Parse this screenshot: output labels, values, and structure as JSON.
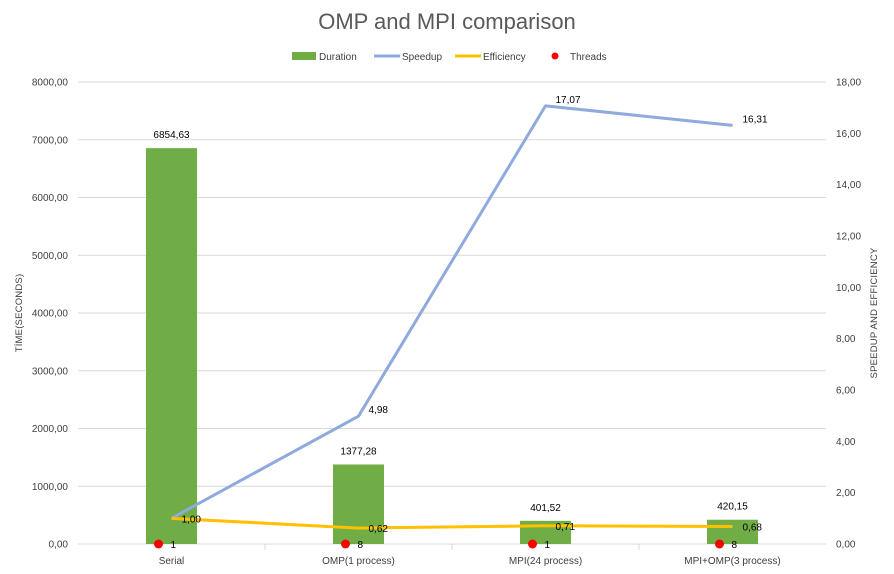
{
  "chart_data": {
    "type": "bar",
    "title": "OMP and MPI comparison",
    "categories": [
      "Serial",
      "OMP(1 process)",
      "MPI(24 process)",
      "MPI+OMP(3 process)"
    ],
    "series": [
      {
        "name": "Duration",
        "type": "bar",
        "axis": "left",
        "color": "#70ad47",
        "values": [
          6854.63,
          1377.28,
          401.52,
          420.15
        ],
        "labels": [
          "6854,63",
          "1377,28",
          "401,52",
          "420,15"
        ]
      },
      {
        "name": "Speedup",
        "type": "line",
        "axis": "right",
        "color": "#8faadc",
        "values": [
          1.0,
          4.98,
          17.07,
          16.31
        ],
        "labels": [
          "",
          "4,98",
          "17,07",
          "16,31"
        ]
      },
      {
        "name": "Efficiency",
        "type": "line",
        "axis": "right",
        "color": "#ffc000",
        "values": [
          1.0,
          0.62,
          0.71,
          0.68
        ],
        "labels": [
          "1,00",
          "0,62",
          "0,71",
          "0,68"
        ]
      },
      {
        "name": "Threads",
        "type": "scatter",
        "axis": "right",
        "color": "#ff0000",
        "values": [
          1,
          8,
          1,
          8
        ],
        "labels": [
          "1",
          "8",
          "1",
          "8"
        ]
      }
    ],
    "ylabel": "TİME(SECONDS)",
    "y2label": "SPEEDUP AND EFFICIENCY",
    "ylim": [
      0,
      8000
    ],
    "y2lim": [
      0,
      18
    ],
    "yticks": [
      0,
      1000,
      2000,
      3000,
      4000,
      5000,
      6000,
      7000,
      8000
    ],
    "yticklabels": [
      "0,00",
      "1000,00",
      "2000,00",
      "3000,00",
      "4000,00",
      "5000,00",
      "6000,00",
      "7000,00",
      "8000,00"
    ],
    "y2ticks": [
      0,
      2,
      4,
      6,
      8,
      10,
      12,
      14,
      16,
      18
    ],
    "y2ticklabels": [
      "0,00",
      "2,00",
      "4,00",
      "6,00",
      "8,00",
      "10,00",
      "12,00",
      "14,00",
      "16,00",
      "18,00"
    ],
    "grid": true,
    "legend": "top"
  }
}
